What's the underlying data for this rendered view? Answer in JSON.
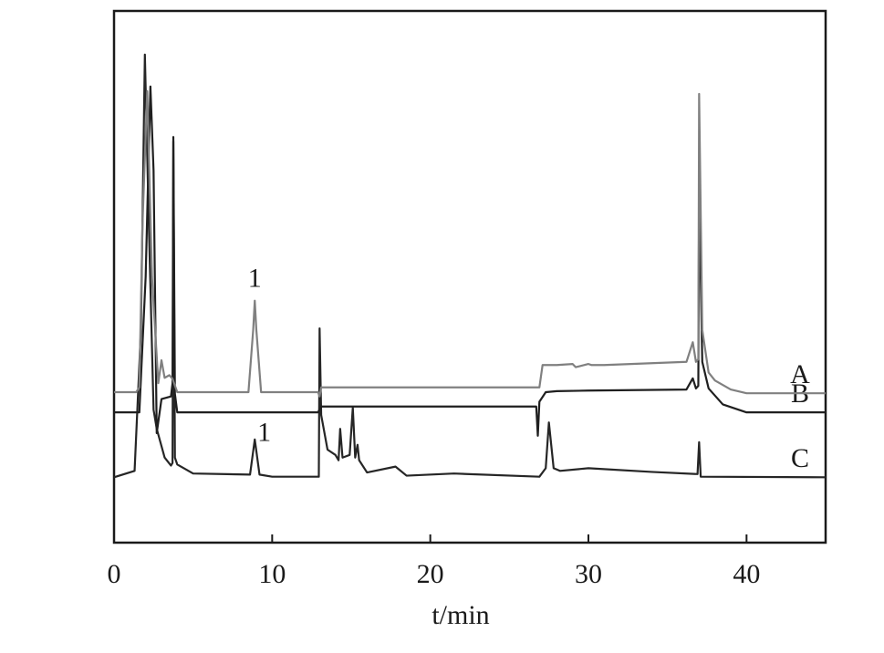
{
  "chart_data": {
    "type": "line",
    "xlabel": "t/min",
    "xlim": [
      0,
      45
    ],
    "xticks": [
      0,
      10,
      20,
      30,
      40
    ],
    "ylim": [
      0,
      100
    ],
    "series": [
      {
        "name": "A",
        "color": "#808080",
        "x": [
          0,
          1.4,
          1.6,
          1.8,
          2.1,
          2.4,
          2.8,
          3.0,
          3.2,
          3.5,
          3.7,
          4.0,
          8.5,
          8.8,
          8.9,
          9.0,
          9.3,
          12.9,
          13.0,
          13.1,
          26.9,
          27.1,
          28,
          29,
          29.2,
          30,
          30.2,
          31,
          36.2,
          36.6,
          36.8,
          36.95,
          37.0,
          37.2,
          37.6,
          38,
          39,
          40,
          45
        ],
        "values": [
          28.3,
          28.3,
          29.2,
          60,
          84.9,
          50,
          30,
          34.3,
          31,
          31.5,
          30.8,
          28.3,
          28.3,
          40,
          45.5,
          40,
          28.3,
          28.3,
          27.5,
          29.2,
          29.2,
          33.4,
          33.4,
          33.6,
          33.0,
          33.6,
          33.4,
          33.4,
          34.0,
          37.7,
          34,
          34.5,
          84.4,
          40,
          32,
          30.5,
          28.8,
          28.1,
          28.1
        ]
      },
      {
        "name": "B",
        "color": "#1f1f1f",
        "x": [
          0,
          1.6,
          2.0,
          2.3,
          2.5,
          2.7,
          3.0,
          3.6,
          3.7,
          3.75,
          3.85,
          4.0,
          12.9,
          13.1,
          26.7,
          26.8,
          26.9,
          27.3,
          28,
          30,
          36.2,
          36.6,
          36.8,
          36.95,
          37.0,
          37.2,
          37.6,
          38.5,
          40,
          45
        ],
        "values": [
          24.5,
          24.5,
          50,
          85.8,
          70,
          20.6,
          27.0,
          27.5,
          30,
          76.3,
          28,
          24.5,
          24.5,
          25.6,
          25.6,
          20.1,
          26.5,
          28.3,
          28.5,
          28.6,
          28.8,
          30.9,
          29.0,
          29.5,
          66.9,
          34,
          29,
          26,
          24.5,
          24.5
        ]
      },
      {
        "name": "C",
        "color": "#262626",
        "x": [
          0,
          1.3,
          1.7,
          1.95,
          2.2,
          2.5,
          2.7,
          3.2,
          3.6,
          3.7,
          3.75,
          3.85,
          4.0,
          5,
          8.6,
          8.9,
          9.2,
          10,
          12.95,
          13.0,
          13.1,
          13.5,
          14.0,
          14.2,
          14.3,
          14.45,
          14.9,
          15.1,
          15.25,
          15.4,
          15.5,
          16,
          17.8,
          18.5,
          21.5,
          26.9,
          27.3,
          27.5,
          27.8,
          28.2,
          30,
          34,
          36.9,
          37.0,
          37.1,
          45
        ],
        "values": [
          12.3,
          13.5,
          40,
          91.8,
          60,
          25,
          21.4,
          16,
          14.5,
          15,
          75.5,
          16,
          14.7,
          13,
          12.8,
          19.4,
          12.8,
          12.4,
          12.4,
          40.3,
          24,
          17.5,
          16.5,
          15.5,
          21.4,
          16,
          16.5,
          25.4,
          16,
          18.4,
          15.5,
          13.2,
          14.3,
          12.6,
          13,
          12.4,
          14,
          22.6,
          14,
          13.5,
          14,
          13.3,
          12.9,
          18.9,
          12.4,
          12.3
        ]
      }
    ],
    "annotations": [
      {
        "text": "1",
        "x": 8.9,
        "y": 49.3
      },
      {
        "text": "1",
        "x": 9.5,
        "y": 20.3
      }
    ]
  }
}
